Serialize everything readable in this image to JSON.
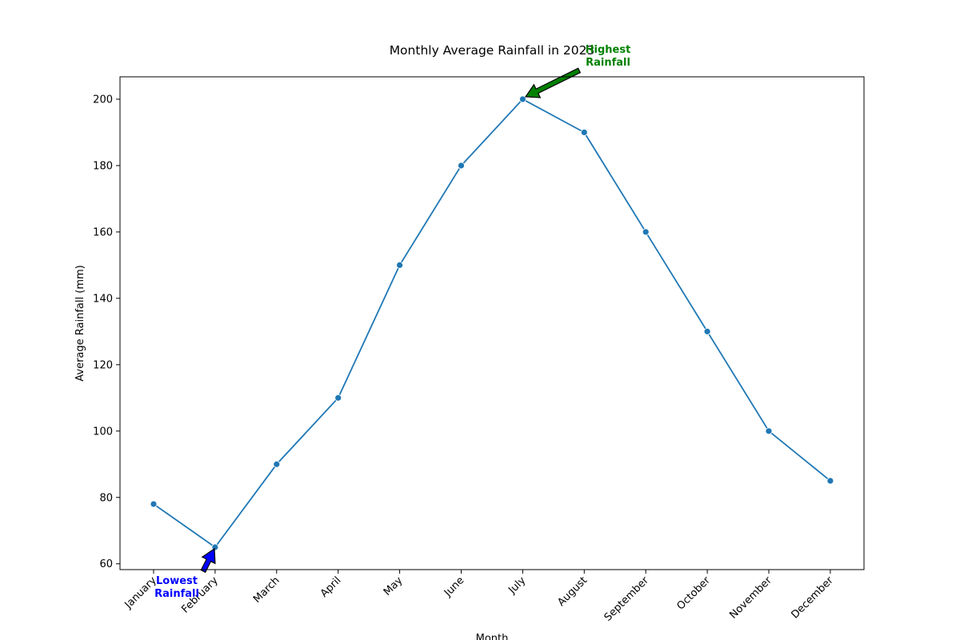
{
  "chart_data": {
    "type": "line",
    "title": "Monthly Average Rainfall in 2023",
    "xlabel": "Month",
    "ylabel": "Average Rainfall (mm)",
    "categories": [
      "January",
      "February",
      "March",
      "April",
      "May",
      "June",
      "July",
      "August",
      "September",
      "October",
      "November",
      "December"
    ],
    "series": [
      {
        "values": [
          78,
          65,
          90,
          110,
          150,
          180,
          200,
          190,
          160,
          130,
          100,
          85
        ]
      }
    ],
    "ylim": [
      58.25,
      206.75
    ],
    "yticks": [
      60,
      80,
      100,
      120,
      140,
      160,
      180,
      200
    ],
    "grid": false,
    "line_color": "#1f77b4",
    "annotations": [
      {
        "text_lines": [
          "Highest",
          "Rainfall"
        ],
        "category": "July",
        "value": 200,
        "color": "#008000",
        "arrow_color": "#008000"
      },
      {
        "text_lines": [
          "Lowest",
          "Rainfall"
        ],
        "category": "February",
        "value": 65,
        "color": "#0000ff",
        "arrow_color": "#0000ff"
      }
    ]
  }
}
